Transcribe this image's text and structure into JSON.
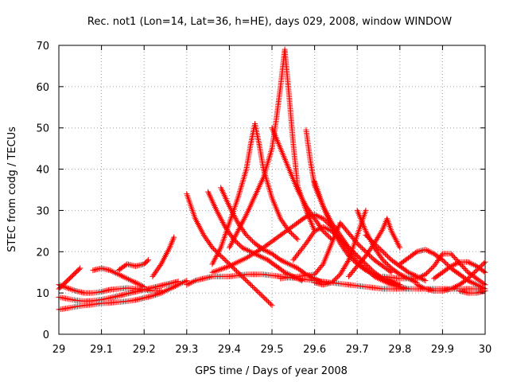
{
  "chart_data": {
    "type": "scatter",
    "title": "Rec. not1 (Lon=14, Lat=36, h=HE), days 029, 2008, window WINDOW",
    "xlabel": "GPS time / Days of year 2008",
    "ylabel": "STEC from codg / TECUs",
    "xlim": [
      29,
      30
    ],
    "ylim": [
      0,
      70
    ],
    "xticks": [
      "29",
      "29.1",
      "29.2",
      "29.3",
      "29.4",
      "29.5",
      "29.6",
      "29.7",
      "29.8",
      "29.9",
      "30"
    ],
    "yticks": [
      "0",
      "10",
      "20",
      "30",
      "40",
      "50",
      "60",
      "70"
    ],
    "grid": true,
    "marker": "plus",
    "color": "#ff0000",
    "series": [
      {
        "x": [
          29.0,
          29.02,
          29.04,
          29.06,
          29.08,
          29.1,
          29.12,
          29.14,
          29.16,
          29.18,
          29.2,
          29.22,
          29.24,
          29.26,
          29.28,
          29.3
        ],
        "y": [
          6.0,
          6.3,
          6.7,
          7.0,
          7.2,
          7.5,
          7.6,
          7.8,
          8.0,
          8.3,
          8.8,
          9.3,
          10.0,
          11.0,
          12.0,
          13.0
        ]
      },
      {
        "x": [
          29.0,
          29.02,
          29.04,
          29.06,
          29.08,
          29.1,
          29.12,
          29.14,
          29.16,
          29.18,
          29.2,
          29.22,
          29.24,
          29.26,
          29.28
        ],
        "y": [
          9.0,
          8.6,
          8.2,
          8.0,
          8.1,
          8.4,
          8.8,
          9.3,
          9.8,
          10.3,
          10.8,
          11.3,
          11.8,
          12.3,
          12.8
        ]
      },
      {
        "x": [
          29.0,
          29.01,
          29.02,
          29.03,
          29.04,
          29.05
        ],
        "y": [
          11.0,
          12.0,
          13.0,
          14.0,
          15.0,
          16.0
        ]
      },
      {
        "x": [
          29.0,
          29.02,
          29.04,
          29.06,
          29.08,
          29.1,
          29.12,
          29.14,
          29.16,
          29.18,
          29.2,
          29.22,
          29.24
        ],
        "y": [
          12.0,
          11.2,
          10.5,
          10.0,
          10.0,
          10.3,
          10.8,
          11.0,
          11.2,
          11.0,
          10.8,
          10.5,
          10.5
        ]
      },
      {
        "x": [
          29.08,
          29.1,
          29.12,
          29.14,
          29.16,
          29.18,
          29.2
        ],
        "y": [
          15.5,
          16.0,
          15.5,
          14.5,
          13.5,
          12.5,
          11.5
        ]
      },
      {
        "x": [
          29.14,
          29.16,
          29.18,
          29.2,
          29.21
        ],
        "y": [
          15.5,
          17.0,
          16.5,
          17.0,
          18.0
        ]
      },
      {
        "x": [
          29.22,
          29.24,
          29.26,
          29.27
        ],
        "y": [
          14.0,
          17.0,
          21.0,
          23.5
        ]
      },
      {
        "x": [
          29.3,
          29.32,
          29.34,
          29.36,
          29.38,
          29.4,
          29.44,
          29.48,
          29.52,
          29.56,
          29.6,
          29.64,
          29.68,
          29.72,
          29.76,
          29.8,
          29.84,
          29.88,
          29.92,
          29.96,
          30.0
        ],
        "y": [
          12.0,
          13.0,
          13.5,
          14.0,
          14.0,
          14.0,
          14.5,
          14.5,
          14.0,
          13.5,
          13.0,
          12.5,
          12.0,
          11.5,
          11.0,
          11.0,
          11.0,
          11.0,
          11.0,
          11.0,
          11.0
        ]
      },
      {
        "x": [
          29.3,
          29.32,
          29.34,
          29.36,
          29.38,
          29.4,
          29.42,
          29.44,
          29.46,
          29.48,
          29.5
        ],
        "y": [
          34.0,
          28.0,
          24.0,
          21.0,
          19.0,
          17.0,
          15.0,
          13.0,
          11.0,
          9.0,
          7.0
        ]
      },
      {
        "x": [
          29.35,
          29.37,
          29.39,
          29.41,
          29.43,
          29.45,
          29.47,
          29.49,
          29.51,
          29.53,
          29.55,
          29.57
        ],
        "y": [
          34.5,
          30.0,
          26.0,
          23.0,
          21.0,
          20.0,
          19.0,
          18.0,
          16.5,
          15.0,
          14.0,
          13.0
        ]
      },
      {
        "x": [
          29.38,
          29.4,
          29.42,
          29.44,
          29.46,
          29.48,
          29.5,
          29.52,
          29.54,
          29.56,
          29.58,
          29.6,
          29.62
        ],
        "y": [
          35.5,
          31.0,
          27.0,
          24.0,
          22.0,
          20.5,
          19.5,
          18.0,
          17.0,
          16.0,
          14.5,
          13.5,
          12.5
        ]
      },
      {
        "x": [
          29.36,
          29.38,
          29.4,
          29.42,
          29.44,
          29.45,
          29.46,
          29.47,
          29.48,
          29.5,
          29.52,
          29.54,
          29.56
        ],
        "y": [
          17.0,
          21.0,
          27.0,
          33.0,
          40.0,
          46.0,
          51.0,
          46.0,
          40.0,
          33.0,
          28.0,
          25.0,
          23.0
        ]
      },
      {
        "x": [
          29.4,
          29.44,
          29.48,
          29.5,
          29.51,
          29.52,
          29.53,
          29.54,
          29.55,
          29.56,
          29.58,
          29.6
        ],
        "y": [
          21.0,
          29.0,
          38.0,
          45.0,
          52.0,
          60.0,
          69.0,
          58.0,
          46.0,
          36.0,
          30.0,
          25.0
        ]
      },
      {
        "x": [
          29.36,
          29.4,
          29.44,
          29.48,
          29.52,
          29.56,
          29.58,
          29.6,
          29.62,
          29.64,
          29.66,
          29.68,
          29.7,
          29.74,
          29.78,
          29.82
        ],
        "y": [
          15.0,
          16.5,
          18.5,
          21.0,
          24.0,
          27.0,
          28.5,
          29.0,
          28.0,
          26.0,
          23.0,
          20.0,
          17.5,
          14.0,
          12.0,
          11.0
        ]
      },
      {
        "x": [
          29.5,
          29.52,
          29.54,
          29.56,
          29.58,
          29.6,
          29.62,
          29.64
        ],
        "y": [
          50.0,
          45.0,
          40.0,
          35.0,
          31.0,
          28.0,
          25.0,
          23.0
        ]
      },
      {
        "x": [
          29.58,
          29.59,
          29.6,
          29.62,
          29.64,
          29.66,
          29.68,
          29.7
        ],
        "y": [
          49.5,
          42.0,
          36.0,
          31.0,
          27.0,
          24.0,
          21.0,
          19.0
        ]
      },
      {
        "x": [
          29.55,
          29.58,
          29.6,
          29.62,
          29.64,
          29.66,
          29.68,
          29.7,
          29.72,
          29.74,
          29.76,
          29.78,
          29.8
        ],
        "y": [
          18.0,
          22.0,
          25.0,
          26.0,
          25.0,
          23.0,
          21.0,
          19.0,
          17.0,
          15.0,
          13.5,
          12.5,
          12.0
        ]
      },
      {
        "x": [
          29.52,
          29.56,
          29.6,
          29.62,
          29.64,
          29.66,
          29.7,
          29.74,
          29.78
        ],
        "y": [
          13.5,
          14.0,
          14.5,
          17.0,
          22.0,
          27.0,
          22.0,
          18.0,
          15.0
        ]
      },
      {
        "x": [
          29.6,
          29.62,
          29.64,
          29.66,
          29.68,
          29.7,
          29.72,
          29.76,
          29.8
        ],
        "y": [
          37.0,
          31.0,
          26.0,
          22.0,
          19.0,
          17.0,
          15.5,
          13.5,
          12.0
        ]
      },
      {
        "x": [
          29.6,
          29.62,
          29.64,
          29.66,
          29.68,
          29.7,
          29.72
        ],
        "y": [
          12.5,
          12.0,
          12.5,
          14.5,
          18.0,
          24.0,
          30.0
        ]
      },
      {
        "x": [
          29.7,
          29.72,
          29.74,
          29.76,
          29.78,
          29.8,
          29.82,
          29.84
        ],
        "y": [
          30.0,
          25.0,
          21.0,
          18.0,
          16.0,
          14.5,
          13.5,
          12.5
        ]
      },
      {
        "x": [
          29.68,
          29.7,
          29.72,
          29.74,
          29.76,
          29.77,
          29.78,
          29.8
        ],
        "y": [
          14.0,
          16.5,
          19.0,
          22.0,
          25.5,
          28.0,
          25.0,
          21.0
        ]
      },
      {
        "x": [
          29.72,
          29.74,
          29.76,
          29.78,
          29.8,
          29.82,
          29.84,
          29.86
        ],
        "y": [
          24.0,
          22.0,
          20.0,
          18.0,
          16.5,
          15.0,
          14.0,
          13.0
        ]
      },
      {
        "x": [
          29.76,
          29.8,
          29.84,
          29.86,
          29.88,
          29.9,
          29.92,
          29.96,
          30.0
        ],
        "y": [
          14.0,
          13.5,
          13.5,
          14.5,
          16.5,
          19.5,
          19.5,
          15.0,
          12.0
        ]
      },
      {
        "x": [
          29.8,
          29.82,
          29.84,
          29.86,
          29.88,
          29.9,
          29.92,
          29.94,
          29.96,
          29.98,
          30.0
        ],
        "y": [
          17.0,
          18.5,
          20.0,
          20.5,
          19.5,
          18.0,
          16.0,
          14.5,
          13.0,
          12.0,
          11.0
        ]
      },
      {
        "x": [
          29.84,
          29.86,
          29.88,
          29.9,
          29.92,
          29.94,
          29.96,
          29.98,
          30.0
        ],
        "y": [
          12.0,
          11.0,
          10.5,
          10.5,
          11.0,
          12.0,
          13.5,
          15.5,
          17.5
        ]
      },
      {
        "x": [
          29.88,
          29.9,
          29.92,
          29.94,
          29.96,
          29.98,
          30.0
        ],
        "y": [
          13.5,
          15.0,
          16.5,
          17.5,
          17.5,
          16.5,
          15.0
        ]
      },
      {
        "x": [
          29.94,
          29.96,
          29.98,
          30.0
        ],
        "y": [
          10.5,
          10.0,
          10.0,
          10.5
        ]
      }
    ]
  }
}
